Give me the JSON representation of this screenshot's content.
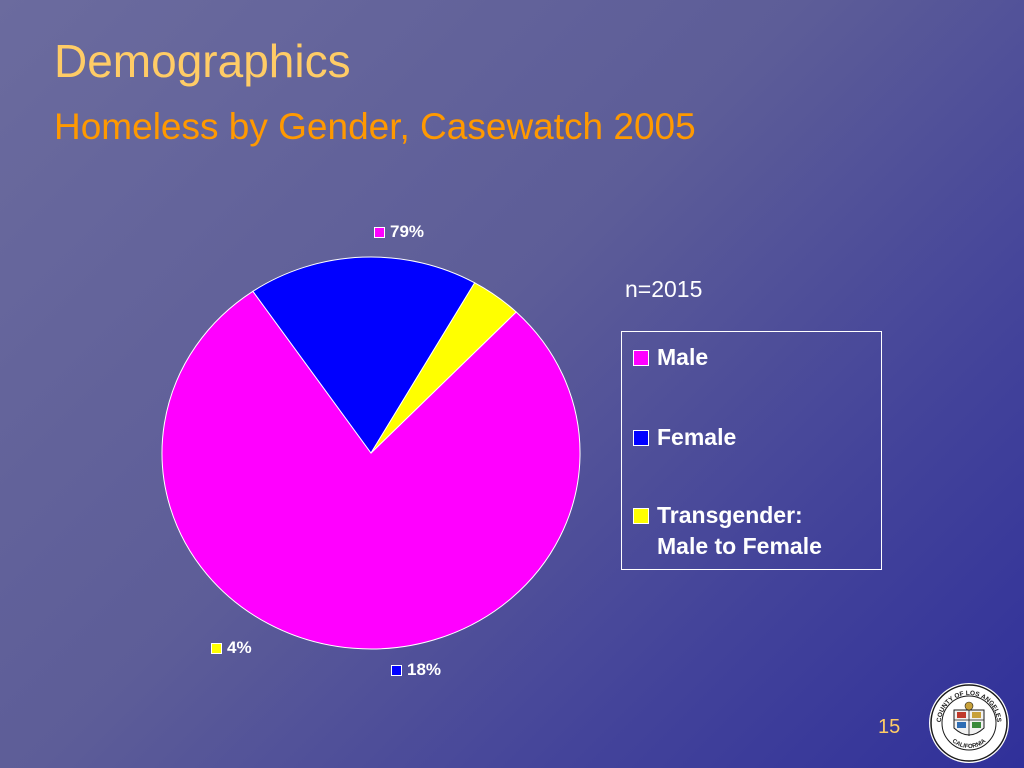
{
  "slide": {
    "title": "Demographics",
    "subtitle": "Homeless by Gender, Casewatch 2005",
    "note": "n=2015",
    "page_number": "15",
    "seal_text": "COUNTY OF LOS ANGELES · CALIFORNIA"
  },
  "chart_data": {
    "type": "pie",
    "title": "",
    "categories": [
      "Male",
      "Female",
      "Transgender:\nMale to Female"
    ],
    "values": [
      79,
      18,
      4
    ],
    "labels": [
      "79%",
      "18%",
      "4%"
    ],
    "colors": [
      "#ff00ff",
      "#0000ff",
      "#ffff00"
    ],
    "legend": "right"
  }
}
